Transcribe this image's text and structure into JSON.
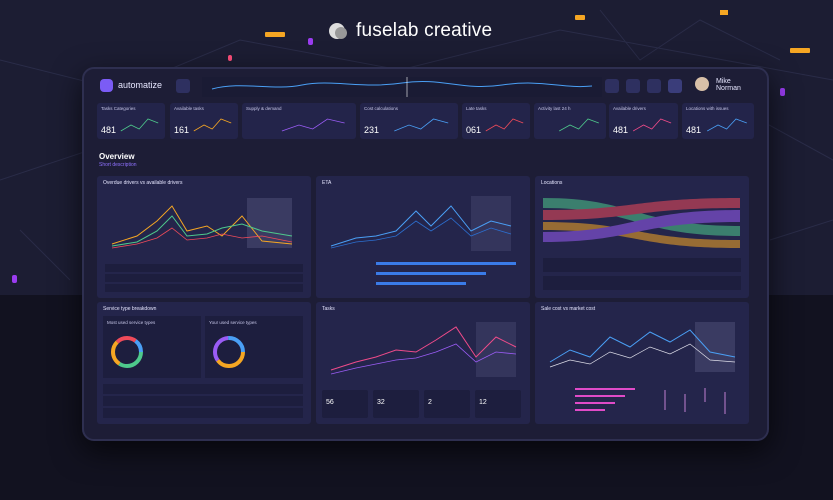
{
  "brand": {
    "name": "fuselab creative"
  },
  "app": {
    "name": "automatize",
    "user": "Mike Norman"
  },
  "kpis": [
    {
      "label": "Tasks Categories",
      "value": "481"
    },
    {
      "label": "Available tasks",
      "value": "161"
    },
    {
      "label": "Supply & demand"
    },
    {
      "label": "Cost calculations",
      "value": "231"
    },
    {
      "label": "Late tasks",
      "value": "061"
    },
    {
      "label": "Activity last 24 h"
    },
    {
      "label": "Available drivers",
      "value": "481"
    },
    {
      "label": "Locations with issues",
      "value": "481"
    }
  ],
  "overview": {
    "title": "Overview",
    "subtitle": "Short description"
  },
  "panels": [
    {
      "title": "Overdue drivers vs available drivers"
    },
    {
      "title": "ETA"
    },
    {
      "title": "Locations"
    },
    {
      "title": "Service type breakdown",
      "left": "Most used service types",
      "right": "Your used service types"
    },
    {
      "title": "Tasks",
      "stats": [
        "56",
        "32",
        "2",
        "12"
      ]
    },
    {
      "title": "Sale cost vs market cost"
    }
  ]
}
